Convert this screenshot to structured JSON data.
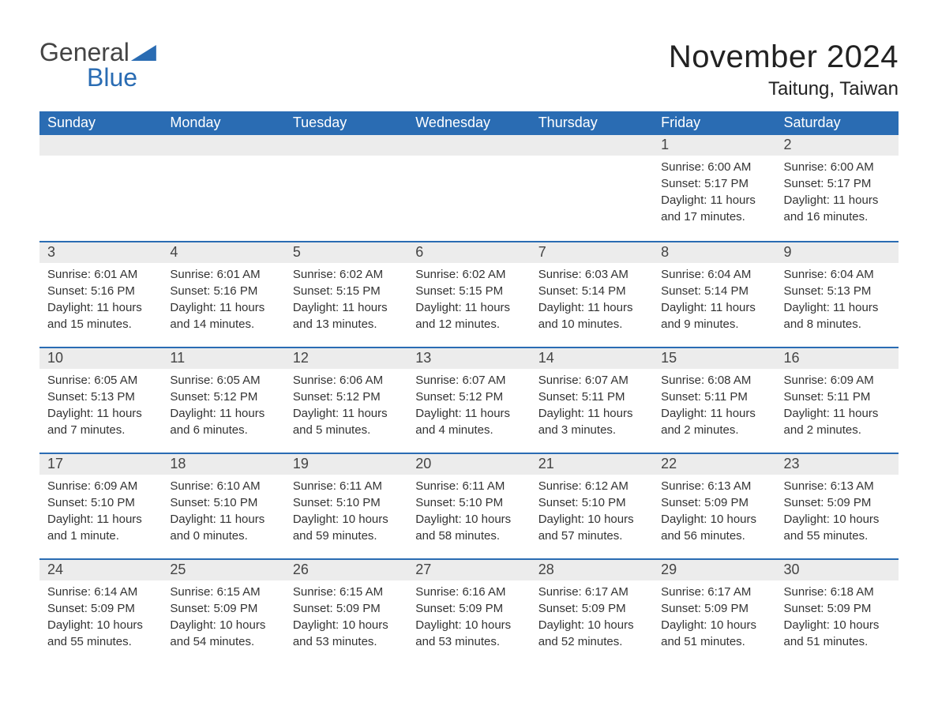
{
  "logo": {
    "text1": "General",
    "text2": "Blue"
  },
  "title": "November 2024",
  "location": "Taitung, Taiwan",
  "colors": {
    "header_bg": "#2a6cb3",
    "header_text": "#ffffff",
    "daynum_bg": "#ececec",
    "body_text": "#333333",
    "divider": "#2a6cb3",
    "page_bg": "#ffffff"
  },
  "day_labels": [
    "Sunday",
    "Monday",
    "Tuesday",
    "Wednesday",
    "Thursday",
    "Friday",
    "Saturday"
  ],
  "weeks": [
    [
      {
        "empty": true
      },
      {
        "empty": true
      },
      {
        "empty": true
      },
      {
        "empty": true
      },
      {
        "empty": true
      },
      {
        "num": "1",
        "sunrise": "Sunrise: 6:00 AM",
        "sunset": "Sunset: 5:17 PM",
        "daylight1": "Daylight: 11 hours",
        "daylight2": "and 17 minutes."
      },
      {
        "num": "2",
        "sunrise": "Sunrise: 6:00 AM",
        "sunset": "Sunset: 5:17 PM",
        "daylight1": "Daylight: 11 hours",
        "daylight2": "and 16 minutes."
      }
    ],
    [
      {
        "num": "3",
        "sunrise": "Sunrise: 6:01 AM",
        "sunset": "Sunset: 5:16 PM",
        "daylight1": "Daylight: 11 hours",
        "daylight2": "and 15 minutes."
      },
      {
        "num": "4",
        "sunrise": "Sunrise: 6:01 AM",
        "sunset": "Sunset: 5:16 PM",
        "daylight1": "Daylight: 11 hours",
        "daylight2": "and 14 minutes."
      },
      {
        "num": "5",
        "sunrise": "Sunrise: 6:02 AM",
        "sunset": "Sunset: 5:15 PM",
        "daylight1": "Daylight: 11 hours",
        "daylight2": "and 13 minutes."
      },
      {
        "num": "6",
        "sunrise": "Sunrise: 6:02 AM",
        "sunset": "Sunset: 5:15 PM",
        "daylight1": "Daylight: 11 hours",
        "daylight2": "and 12 minutes."
      },
      {
        "num": "7",
        "sunrise": "Sunrise: 6:03 AM",
        "sunset": "Sunset: 5:14 PM",
        "daylight1": "Daylight: 11 hours",
        "daylight2": "and 10 minutes."
      },
      {
        "num": "8",
        "sunrise": "Sunrise: 6:04 AM",
        "sunset": "Sunset: 5:14 PM",
        "daylight1": "Daylight: 11 hours",
        "daylight2": "and 9 minutes."
      },
      {
        "num": "9",
        "sunrise": "Sunrise: 6:04 AM",
        "sunset": "Sunset: 5:13 PM",
        "daylight1": "Daylight: 11 hours",
        "daylight2": "and 8 minutes."
      }
    ],
    [
      {
        "num": "10",
        "sunrise": "Sunrise: 6:05 AM",
        "sunset": "Sunset: 5:13 PM",
        "daylight1": "Daylight: 11 hours",
        "daylight2": "and 7 minutes."
      },
      {
        "num": "11",
        "sunrise": "Sunrise: 6:05 AM",
        "sunset": "Sunset: 5:12 PM",
        "daylight1": "Daylight: 11 hours",
        "daylight2": "and 6 minutes."
      },
      {
        "num": "12",
        "sunrise": "Sunrise: 6:06 AM",
        "sunset": "Sunset: 5:12 PM",
        "daylight1": "Daylight: 11 hours",
        "daylight2": "and 5 minutes."
      },
      {
        "num": "13",
        "sunrise": "Sunrise: 6:07 AM",
        "sunset": "Sunset: 5:12 PM",
        "daylight1": "Daylight: 11 hours",
        "daylight2": "and 4 minutes."
      },
      {
        "num": "14",
        "sunrise": "Sunrise: 6:07 AM",
        "sunset": "Sunset: 5:11 PM",
        "daylight1": "Daylight: 11 hours",
        "daylight2": "and 3 minutes."
      },
      {
        "num": "15",
        "sunrise": "Sunrise: 6:08 AM",
        "sunset": "Sunset: 5:11 PM",
        "daylight1": "Daylight: 11 hours",
        "daylight2": "and 2 minutes."
      },
      {
        "num": "16",
        "sunrise": "Sunrise: 6:09 AM",
        "sunset": "Sunset: 5:11 PM",
        "daylight1": "Daylight: 11 hours",
        "daylight2": "and 2 minutes."
      }
    ],
    [
      {
        "num": "17",
        "sunrise": "Sunrise: 6:09 AM",
        "sunset": "Sunset: 5:10 PM",
        "daylight1": "Daylight: 11 hours",
        "daylight2": "and 1 minute."
      },
      {
        "num": "18",
        "sunrise": "Sunrise: 6:10 AM",
        "sunset": "Sunset: 5:10 PM",
        "daylight1": "Daylight: 11 hours",
        "daylight2": "and 0 minutes."
      },
      {
        "num": "19",
        "sunrise": "Sunrise: 6:11 AM",
        "sunset": "Sunset: 5:10 PM",
        "daylight1": "Daylight: 10 hours",
        "daylight2": "and 59 minutes."
      },
      {
        "num": "20",
        "sunrise": "Sunrise: 6:11 AM",
        "sunset": "Sunset: 5:10 PM",
        "daylight1": "Daylight: 10 hours",
        "daylight2": "and 58 minutes."
      },
      {
        "num": "21",
        "sunrise": "Sunrise: 6:12 AM",
        "sunset": "Sunset: 5:10 PM",
        "daylight1": "Daylight: 10 hours",
        "daylight2": "and 57 minutes."
      },
      {
        "num": "22",
        "sunrise": "Sunrise: 6:13 AM",
        "sunset": "Sunset: 5:09 PM",
        "daylight1": "Daylight: 10 hours",
        "daylight2": "and 56 minutes."
      },
      {
        "num": "23",
        "sunrise": "Sunrise: 6:13 AM",
        "sunset": "Sunset: 5:09 PM",
        "daylight1": "Daylight: 10 hours",
        "daylight2": "and 55 minutes."
      }
    ],
    [
      {
        "num": "24",
        "sunrise": "Sunrise: 6:14 AM",
        "sunset": "Sunset: 5:09 PM",
        "daylight1": "Daylight: 10 hours",
        "daylight2": "and 55 minutes."
      },
      {
        "num": "25",
        "sunrise": "Sunrise: 6:15 AM",
        "sunset": "Sunset: 5:09 PM",
        "daylight1": "Daylight: 10 hours",
        "daylight2": "and 54 minutes."
      },
      {
        "num": "26",
        "sunrise": "Sunrise: 6:15 AM",
        "sunset": "Sunset: 5:09 PM",
        "daylight1": "Daylight: 10 hours",
        "daylight2": "and 53 minutes."
      },
      {
        "num": "27",
        "sunrise": "Sunrise: 6:16 AM",
        "sunset": "Sunset: 5:09 PM",
        "daylight1": "Daylight: 10 hours",
        "daylight2": "and 53 minutes."
      },
      {
        "num": "28",
        "sunrise": "Sunrise: 6:17 AM",
        "sunset": "Sunset: 5:09 PM",
        "daylight1": "Daylight: 10 hours",
        "daylight2": "and 52 minutes."
      },
      {
        "num": "29",
        "sunrise": "Sunrise: 6:17 AM",
        "sunset": "Sunset: 5:09 PM",
        "daylight1": "Daylight: 10 hours",
        "daylight2": "and 51 minutes."
      },
      {
        "num": "30",
        "sunrise": "Sunrise: 6:18 AM",
        "sunset": "Sunset: 5:09 PM",
        "daylight1": "Daylight: 10 hours",
        "daylight2": "and 51 minutes."
      }
    ]
  ]
}
